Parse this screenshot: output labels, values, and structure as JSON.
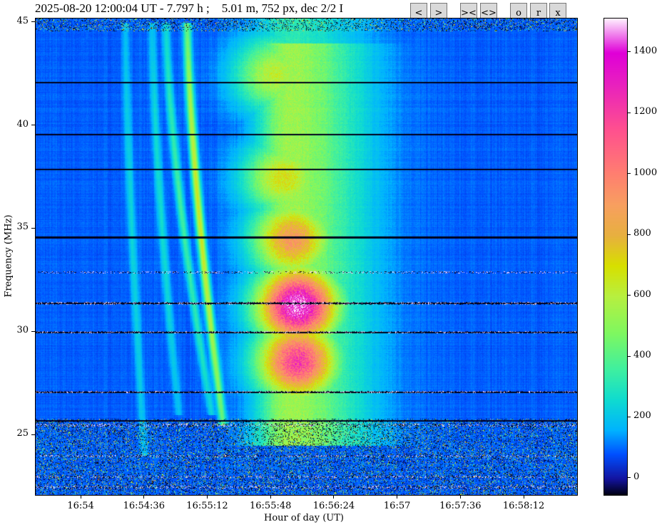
{
  "header": {
    "title": "2025-08-20 12:00:04 UT - 7.797 h ;    5.01 m, 752 px, dec 2/2 I",
    "buttons": [
      {
        "label": "<",
        "icon": "prev-icon"
      },
      {
        "label": ">",
        "icon": "next-icon"
      },
      {
        "label": "><",
        "icon": "zoom-in-icon"
      },
      {
        "label": "<>",
        "icon": "zoom-out-icon"
      },
      {
        "label": "o",
        "icon": "original-icon"
      },
      {
        "label": "r",
        "icon": "reset-icon"
      },
      {
        "label": "x",
        "icon": "close-icon"
      }
    ]
  },
  "chart_data": {
    "type": "heatmap",
    "title": "2025-08-20 12:00:04 UT - 7.797 h ;    5.01 m, 752 px, dec 2/2 I",
    "xlabel": "Hour of day (UT)",
    "ylabel": "Frequency (MHz)",
    "xlim": [
      "16:53:34",
      "16:58:42"
    ],
    "ylim": [
      22.1,
      45.2
    ],
    "xticks": [
      "16:54",
      "16:54:36",
      "16:55:12",
      "16:55:48",
      "16:56:24",
      "16:57",
      "16:57:36",
      "16:58:12"
    ],
    "yticks": [
      25,
      30,
      35,
      40,
      45
    ],
    "colorbar": {
      "range": [
        -54,
        1512
      ],
      "ticks": [
        0,
        200,
        400,
        600,
        800,
        1000,
        1200,
        1400
      ],
      "colormap": [
        [
          -54,
          "#000010"
        ],
        [
          0,
          "#1414a0"
        ],
        [
          80,
          "#0050ff"
        ],
        [
          160,
          "#00b4ff"
        ],
        [
          260,
          "#10dcd0"
        ],
        [
          360,
          "#40f0a0"
        ],
        [
          480,
          "#80f860"
        ],
        [
          600,
          "#b8f040"
        ],
        [
          700,
          "#d8e000"
        ],
        [
          800,
          "#e8b040"
        ],
        [
          900,
          "#f8a060"
        ],
        [
          1000,
          "#ff8070"
        ],
        [
          1150,
          "#ff5090"
        ],
        [
          1300,
          "#e820c0"
        ],
        [
          1400,
          "#e000d8"
        ],
        [
          1512,
          "#fff0ff"
        ]
      ]
    },
    "background_level": 90,
    "drifting_bursts": [
      {
        "start": [
          "16:55:00",
          45
        ],
        "end": [
          "16:55:19",
          26.5
        ],
        "peak": 560
      },
      {
        "start": [
          "16:54:48",
          45
        ],
        "end": [
          "16:55:12",
          27
        ],
        "peak": 260
      },
      {
        "start": [
          "16:54:40",
          45
        ],
        "end": [
          "16:54:54",
          27
        ],
        "peak": 170
      },
      {
        "start": [
          "16:54:25",
          45
        ],
        "end": [
          "16:54:35",
          25
        ],
        "peak": 150
      }
    ],
    "diffuse_emission": [
      {
        "time": "16:56:03",
        "freq": 31.3,
        "value": 1350
      },
      {
        "time": "16:56:03",
        "freq": 28.6,
        "value": 1100
      },
      {
        "time": "16:56:00",
        "freq": 34.5,
        "value": 820
      },
      {
        "time": "16:55:55",
        "freq": 37.5,
        "value": 600
      },
      {
        "time": "16:55:50",
        "freq": 42.5,
        "value": 520
      }
    ],
    "dark_lines_mhz": [
      42.1,
      39.6,
      37.9,
      34.6,
      31.4,
      30.0,
      27.1,
      25.7
    ],
    "rfi_lines_mhz": [
      32.9,
      31.4,
      30.0,
      27.1,
      25.5,
      24.0,
      23.0,
      22.5
    ]
  }
}
